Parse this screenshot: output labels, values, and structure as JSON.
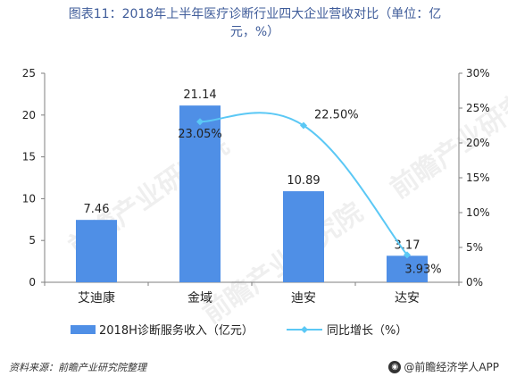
{
  "title": {
    "line1": "图表11：2018年上半年医疗诊断行业四大企业营收对比（单位：亿",
    "line2": "元，%）"
  },
  "chart_data": {
    "type": "bar",
    "categories": [
      "艾迪康",
      "金域",
      "迪安",
      "达安"
    ],
    "series": [
      {
        "name": "2018H诊断服务收入（亿元）",
        "kind": "bar",
        "axis": "left",
        "values": [
          7.46,
          21.14,
          10.89,
          3.17
        ],
        "labels": [
          "7.46",
          "21.14",
          "10.89",
          "3.17"
        ]
      },
      {
        "name": "同比增长（%）",
        "kind": "line",
        "axis": "right",
        "values": [
          null,
          23.05,
          22.5,
          3.93
        ],
        "labels": [
          "",
          "23.05%",
          "22.50%",
          "3.93%"
        ]
      }
    ],
    "left_axis": {
      "min": 0,
      "max": 25,
      "step": 5,
      "ticks": [
        "0",
        "5",
        "10",
        "15",
        "20",
        "25"
      ]
    },
    "right_axis": {
      "min": 0,
      "max": 30,
      "step": 5,
      "ticks": [
        "0%",
        "5%",
        "10%",
        "15%",
        "20%",
        "25%",
        "30%"
      ]
    },
    "grid": false,
    "legend_position": "bottom",
    "colors": {
      "bar": "#4f8fe6",
      "line": "#5bc8f5",
      "axis": "#7f7f7f",
      "text": "#222222"
    }
  },
  "watermark": "前瞻产业研究院",
  "footer": {
    "source": "资料来源：前瞻产业研究院整理",
    "brand": "@前瞻经济学人APP"
  }
}
